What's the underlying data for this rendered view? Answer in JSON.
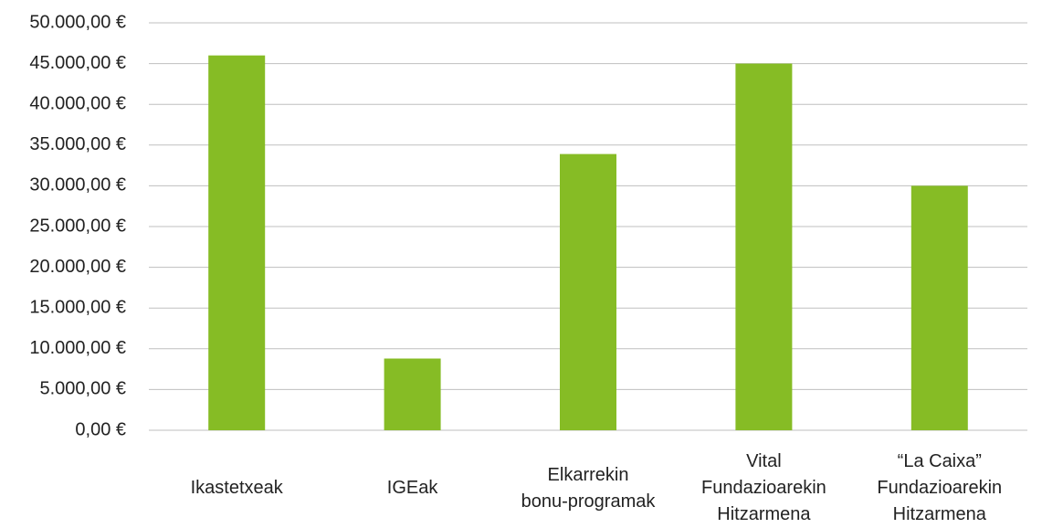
{
  "chart_data": {
    "type": "bar",
    "categories": [
      "Ikastetxeak",
      "IGEak",
      "Elkarrekin\nbonu-programak",
      "Vital\nFundazioarekin\nHitzarmena",
      "“La Caixa”\nFundazioarekin\nHitzarmena"
    ],
    "values": [
      46000,
      8800,
      33900,
      45000,
      30000
    ],
    "color": "#86bc25",
    "ylim": [
      0,
      50000
    ],
    "yticks": [
      {
        "value": 0,
        "label": "0,00 €"
      },
      {
        "value": 5000,
        "label": "5.000,00 €"
      },
      {
        "value": 10000,
        "label": "10.000,00 €"
      },
      {
        "value": 15000,
        "label": "15.000,00 €"
      },
      {
        "value": 20000,
        "label": "20.000,00 €"
      },
      {
        "value": 25000,
        "label": "25.000,00 €"
      },
      {
        "value": 30000,
        "label": "30.000,00 €"
      },
      {
        "value": 35000,
        "label": "35.000,00 €"
      },
      {
        "value": 40000,
        "label": "40.000,00 €"
      },
      {
        "value": 45000,
        "label": "45.000,00 €"
      },
      {
        "value": 50000,
        "label": "50.000,00 €"
      }
    ],
    "grid": true
  }
}
